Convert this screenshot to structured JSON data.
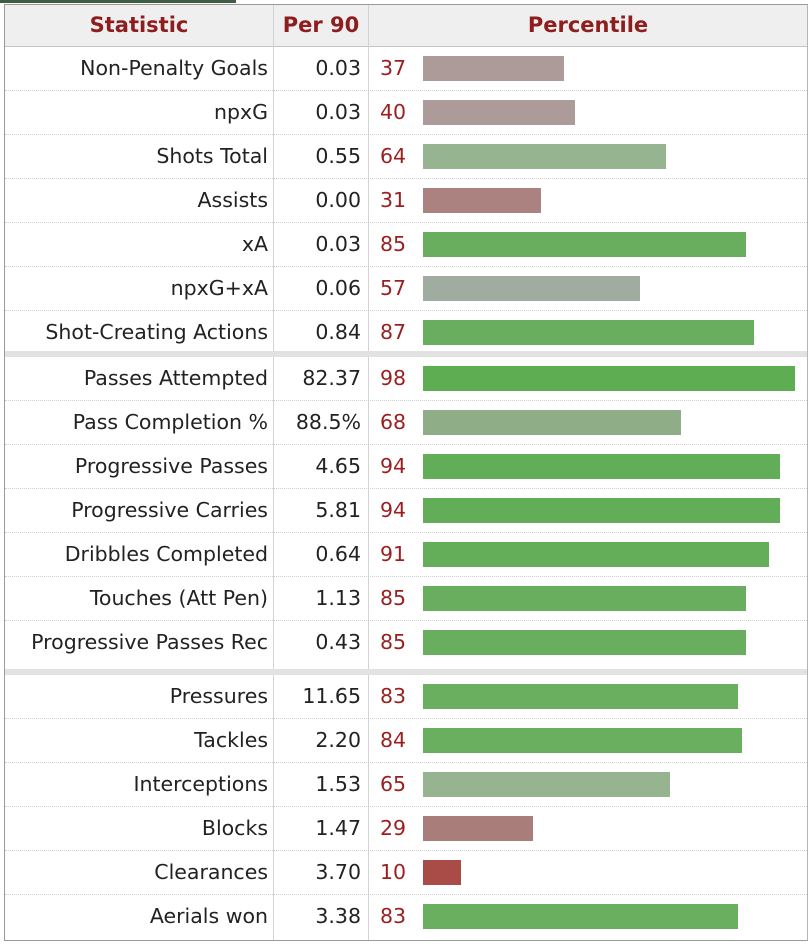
{
  "headers": {
    "statistic": "Statistic",
    "per90": "Per 90",
    "percentile": "Percentile"
  },
  "groups": [
    [
      {
        "stat": "Non-Penalty Goals",
        "per90": "0.03",
        "percentile": 37,
        "color": "#ad9b99"
      },
      {
        "stat": "npxG",
        "per90": "0.03",
        "percentile": 40,
        "color": "#ad9b99"
      },
      {
        "stat": "Shots Total",
        "per90": "0.55",
        "percentile": 64,
        "color": "#96b48f"
      },
      {
        "stat": "Assists",
        "per90": "0.00",
        "percentile": 31,
        "color": "#ab827f"
      },
      {
        "stat": "xA",
        "per90": "0.03",
        "percentile": 85,
        "color": "#69ae5e"
      },
      {
        "stat": "npxG+xA",
        "per90": "0.06",
        "percentile": 57,
        "color": "#a1aca0"
      },
      {
        "stat": "Shot-Creating Actions",
        "per90": "0.84",
        "percentile": 87,
        "color": "#69ae5e"
      }
    ],
    [
      {
        "stat": "Passes Attempted",
        "per90": "82.37",
        "percentile": 98,
        "color": "#5ead52"
      },
      {
        "stat": "Pass Completion %",
        "per90": "88.5%",
        "percentile": 68,
        "color": "#8fad87"
      },
      {
        "stat": "Progressive Passes",
        "per90": "4.65",
        "percentile": 94,
        "color": "#62ad57"
      },
      {
        "stat": "Progressive Carries",
        "per90": "5.81",
        "percentile": 94,
        "color": "#62ad57"
      },
      {
        "stat": "Dribbles Completed",
        "per90": "0.64",
        "percentile": 91,
        "color": "#64ad59"
      },
      {
        "stat": "Touches (Att Pen)",
        "per90": "1.13",
        "percentile": 85,
        "color": "#69ae5e"
      },
      {
        "stat": "Progressive Passes Rec",
        "per90": "0.43",
        "percentile": 85,
        "color": "#69ae5e"
      }
    ],
    [
      {
        "stat": "Pressures",
        "per90": "11.65",
        "percentile": 83,
        "color": "#6aae5f"
      },
      {
        "stat": "Tackles",
        "per90": "2.20",
        "percentile": 84,
        "color": "#6aae5f"
      },
      {
        "stat": "Interceptions",
        "per90": "1.53",
        "percentile": 65,
        "color": "#96b48f"
      },
      {
        "stat": "Blocks",
        "per90": "1.47",
        "percentile": 29,
        "color": "#a97d7a"
      },
      {
        "stat": "Clearances",
        "per90": "3.70",
        "percentile": 10,
        "color": "#a94c47"
      },
      {
        "stat": "Aerials won",
        "per90": "3.38",
        "percentile": 83,
        "color": "#6aae5f"
      }
    ]
  ]
}
